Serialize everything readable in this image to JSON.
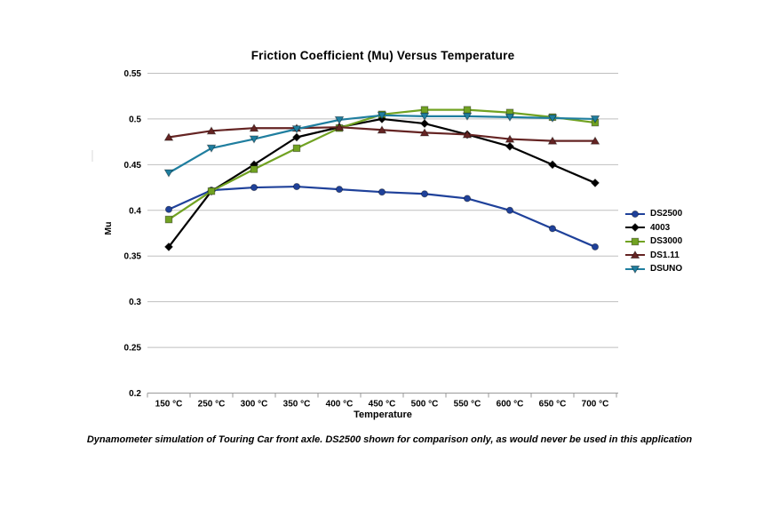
{
  "chart_data": {
    "type": "line",
    "title": "Friction Coefficient (Mu) Versus Temperature",
    "xlabel": "Temperature",
    "ylabel": "Mu",
    "categories": [
      "150 °C",
      "250 °C",
      "300 °C",
      "350 °C",
      "400 °C",
      "450 °C",
      "500 °C",
      "550 °C",
      "600 °C",
      "650 °C",
      "700 °C"
    ],
    "ylim": [
      0.2,
      0.55
    ],
    "ytick_labels": [
      "0.55",
      "0.5",
      "0.45",
      "0.4",
      "0.35",
      "0.3",
      "0.25",
      "0.2"
    ],
    "grid": true,
    "legend_position": "right",
    "gridline_color": "#BFBFBF",
    "axis_color": "#999999",
    "series": [
      {
        "name": "DS2500",
        "color": "#1F419A",
        "marker": "circle",
        "values": [
          0.401,
          0.422,
          0.425,
          0.426,
          0.423,
          0.42,
          0.418,
          0.413,
          0.4,
          0.38,
          0.36
        ]
      },
      {
        "name": "4003",
        "color": "#000000",
        "marker": "diamond",
        "values": [
          0.36,
          0.421,
          0.45,
          0.48,
          0.491,
          0.5,
          0.495,
          0.483,
          0.47,
          0.45,
          0.43
        ]
      },
      {
        "name": "DS3000",
        "color": "#71A222",
        "marker": "square",
        "values": [
          0.39,
          0.421,
          0.445,
          0.468,
          0.49,
          0.505,
          0.51,
          0.51,
          0.507,
          0.502,
          0.496
        ]
      },
      {
        "name": "DS1.11",
        "color": "#652423",
        "marker": "triangle-up",
        "values": [
          0.48,
          0.487,
          0.49,
          0.49,
          0.491,
          0.488,
          0.485,
          0.483,
          0.478,
          0.476,
          0.476
        ]
      },
      {
        "name": "DSUNO",
        "color": "#1F7E9F",
        "marker": "triangle-down",
        "values": [
          0.441,
          0.468,
          0.478,
          0.489,
          0.499,
          0.504,
          0.503,
          0.503,
          0.502,
          0.501,
          0.5
        ]
      }
    ]
  },
  "caption": "Dynamometer simulation of Touring Car front axle. DS2500 shown for comparison only, as would never be used in this application"
}
